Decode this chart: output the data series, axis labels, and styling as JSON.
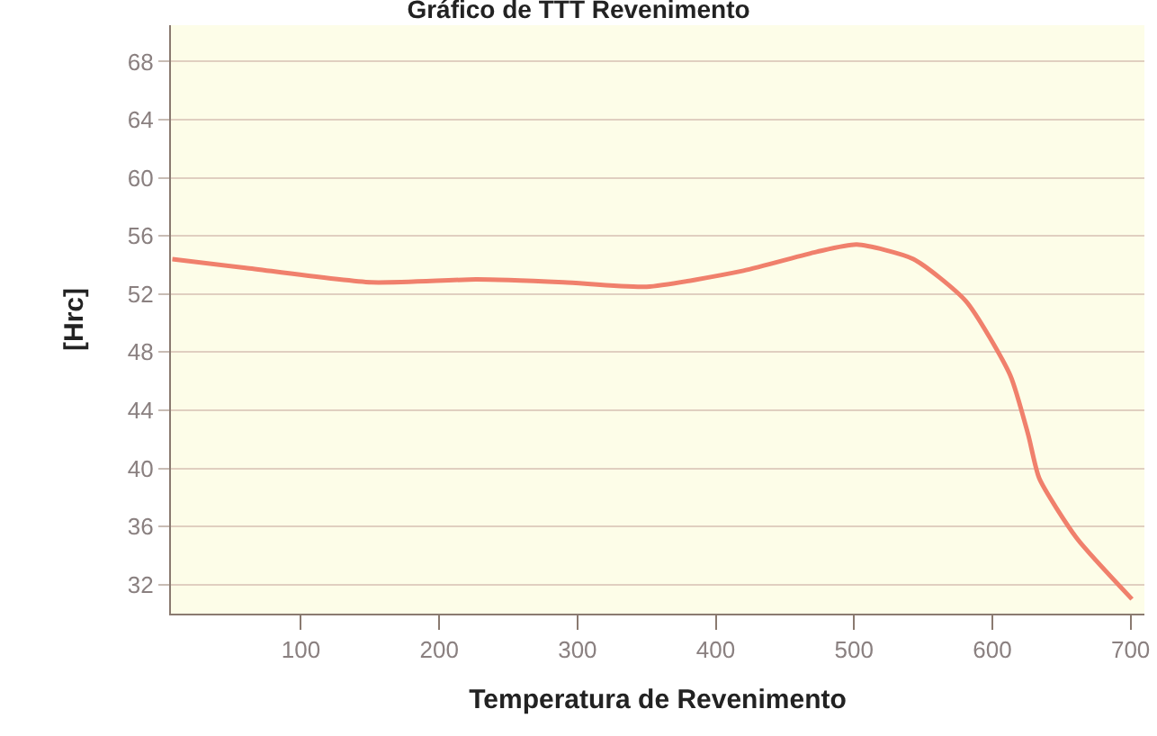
{
  "chart_data": {
    "type": "line",
    "title": "Gráfico de TTT Revenimento",
    "xlabel": "Temperatura de Revenimento",
    "ylabel": "[Hrc]",
    "x": [
      7,
      60,
      151,
      227,
      290,
      350,
      420,
      473,
      502,
      543,
      581,
      613,
      626,
      634,
      661,
      701
    ],
    "series": [
      {
        "color": "#f0806c",
        "values": [
          54.4,
          53.8,
          52.8,
          53.0,
          52.8,
          52.5,
          53.6,
          54.9,
          55.4,
          54.4,
          51.5,
          46.4,
          42.3,
          39.3,
          35.2,
          31.0
        ]
      }
    ],
    "xlim": [
      6,
      710
    ],
    "ylim": [
      30,
      70.5
    ],
    "xticks": [
      100,
      200,
      300,
      400,
      500,
      600,
      700
    ],
    "yticks": [
      32,
      36,
      40,
      44,
      48,
      52,
      56,
      60,
      64,
      68
    ],
    "grid": "y",
    "legend": false,
    "marker": "none",
    "line_style": "solid"
  }
}
